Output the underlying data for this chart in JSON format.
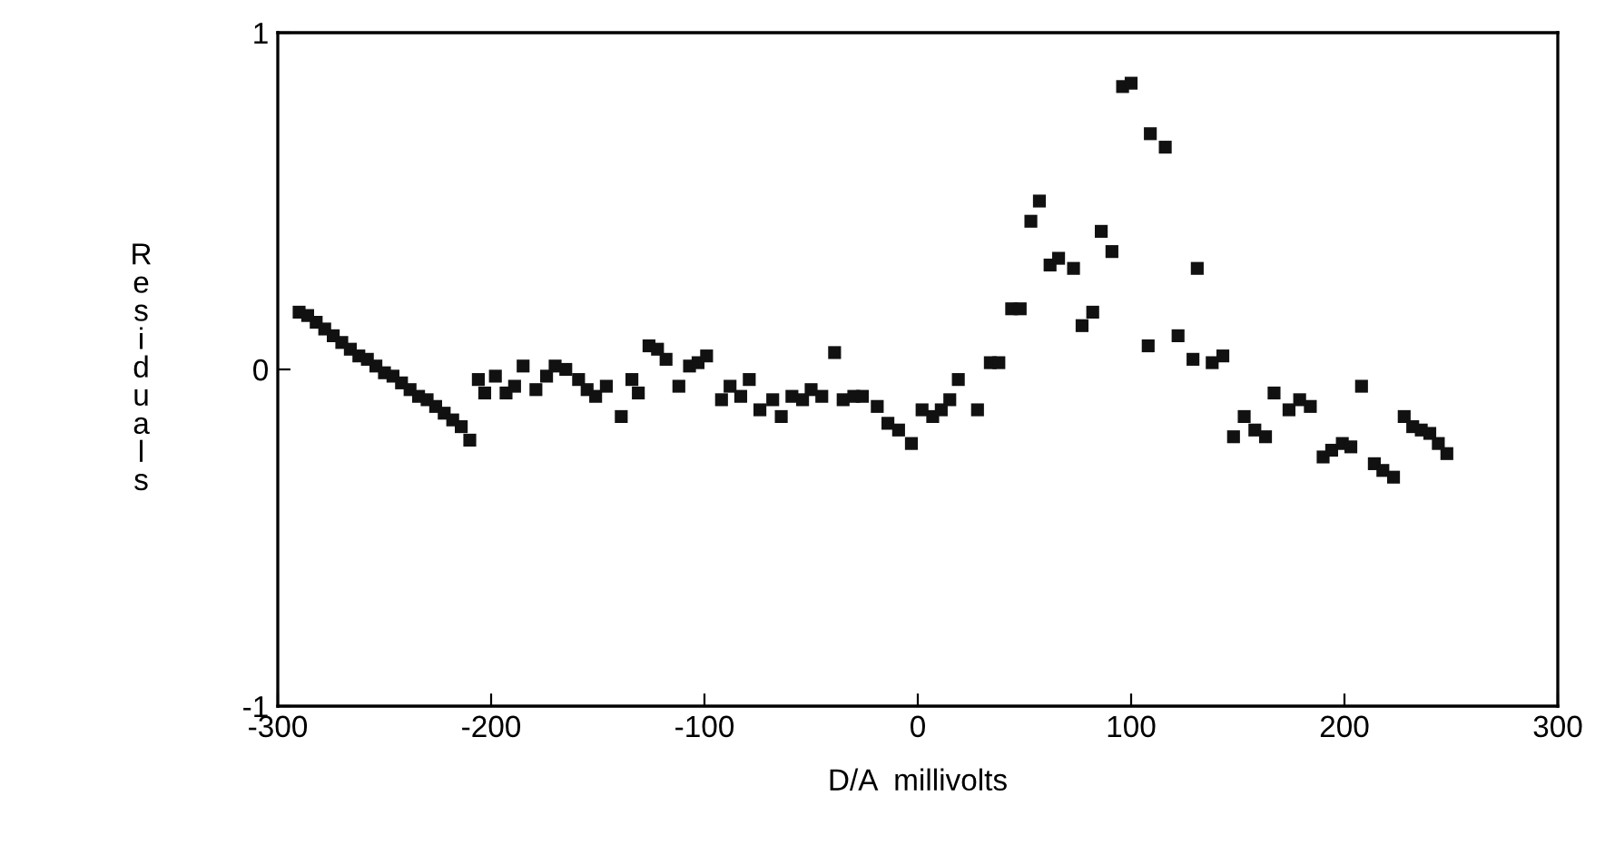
{
  "chart_data": {
    "type": "scatter",
    "xlabel": "D/A  millivolts",
    "ylabel": "Residuals",
    "xlim": [
      -300,
      300
    ],
    "ylim": [
      -1,
      1
    ],
    "xticks": [
      -300,
      -200,
      -100,
      0,
      100,
      200,
      300
    ],
    "yticks": [
      -1,
      0,
      1
    ],
    "grid": false,
    "legend": false,
    "marker": "square",
    "series": [
      {
        "color": "#111111",
        "x": [
          -290,
          -286,
          -282,
          -278,
          -274,
          -270,
          -266,
          -262,
          -258,
          -254,
          -250,
          -246,
          -242,
          -238,
          -234,
          -230,
          -226,
          -222,
          -218,
          -214,
          -210,
          -206,
          -203,
          -198,
          -193,
          -189,
          -185,
          -179,
          -174,
          -170,
          -165,
          -159,
          -155,
          -151,
          -146,
          -139,
          -134,
          -131,
          -126,
          -122,
          -118,
          -112,
          -107,
          -103,
          -99,
          -92,
          -88,
          -83,
          -79,
          -74,
          -68,
          -64,
          -59,
          -54,
          -50,
          -45,
          -39,
          -35,
          -30,
          -26,
          -19,
          -14,
          -9,
          -3,
          2,
          7,
          11,
          15,
          19,
          28,
          34,
          38,
          44,
          48,
          53,
          57,
          62,
          66,
          73,
          77,
          82,
          86,
          91,
          96,
          100,
          108,
          109,
          116,
          122,
          129,
          131,
          138,
          143,
          148,
          153,
          158,
          163,
          167,
          174,
          179,
          184,
          190,
          194,
          199,
          203,
          208,
          214,
          218,
          223,
          228,
          232,
          236,
          240,
          244,
          248
        ],
        "values": [
          0.17,
          0.16,
          0.14,
          0.12,
          0.1,
          0.08,
          0.06,
          0.04,
          0.03,
          0.01,
          -0.01,
          -0.02,
          -0.04,
          -0.06,
          -0.08,
          -0.09,
          -0.11,
          -0.13,
          -0.15,
          -0.17,
          -0.21,
          -0.03,
          -0.07,
          -0.02,
          -0.07,
          -0.05,
          0.01,
          -0.06,
          -0.02,
          0.01,
          0.0,
          -0.03,
          -0.06,
          -0.08,
          -0.05,
          -0.14,
          -0.03,
          -0.07,
          0.07,
          0.06,
          0.03,
          -0.05,
          0.01,
          0.02,
          0.04,
          -0.09,
          -0.05,
          -0.08,
          -0.03,
          -0.12,
          -0.09,
          -0.14,
          -0.08,
          -0.09,
          -0.06,
          -0.08,
          0.05,
          -0.09,
          -0.08,
          -0.08,
          -0.11,
          -0.16,
          -0.18,
          -0.22,
          -0.12,
          -0.14,
          -0.12,
          -0.09,
          -0.03,
          -0.12,
          0.02,
          0.02,
          0.18,
          0.18,
          0.44,
          0.5,
          0.31,
          0.33,
          0.3,
          0.13,
          0.17,
          0.41,
          0.35,
          0.84,
          0.85,
          0.07,
          0.7,
          0.66,
          0.1,
          0.03,
          0.3,
          0.02,
          0.04,
          -0.2,
          -0.14,
          -0.18,
          -0.2,
          -0.07,
          -0.12,
          -0.09,
          -0.11,
          -0.26,
          -0.24,
          -0.22,
          -0.23,
          -0.05,
          -0.28,
          -0.3,
          -0.32,
          -0.14,
          -0.17,
          -0.18,
          -0.19,
          -0.22,
          -0.25
        ]
      }
    ]
  }
}
